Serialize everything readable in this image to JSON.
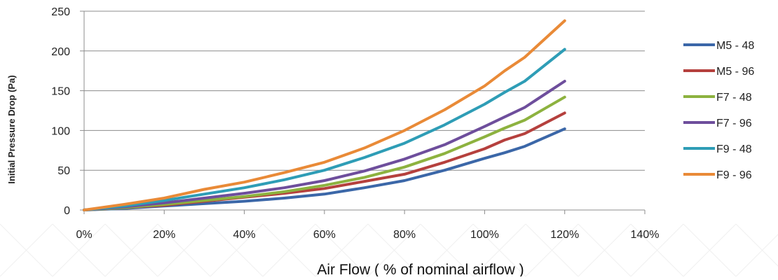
{
  "chart_data": {
    "type": "line",
    "title": "",
    "xlabel": "Air Flow ( % of nominal airflow )",
    "ylabel": "Initial Pressure Drop (Pa)",
    "xlim": [
      0,
      140
    ],
    "ylim": [
      0,
      250
    ],
    "x_ticks": [
      "0%",
      "20%",
      "40%",
      "60%",
      "80%",
      "100%",
      "120%",
      "140%"
    ],
    "x_tick_values": [
      0,
      20,
      40,
      60,
      80,
      100,
      120,
      140
    ],
    "y_ticks": [
      "0",
      "50",
      "100",
      "150",
      "200",
      "250"
    ],
    "y_tick_values": [
      0,
      50,
      100,
      150,
      200,
      250
    ],
    "grid": "horizontal",
    "legend_position": "right",
    "x": [
      0,
      10,
      20,
      30,
      40,
      50,
      60,
      70,
      80,
      90,
      100,
      105,
      110,
      120
    ],
    "series": [
      {
        "name": "M5 - 48",
        "color": "#3B67A8",
        "values": [
          0,
          2,
          5,
          8,
          11,
          15,
          20,
          28,
          37,
          50,
          65,
          72,
          80,
          102
        ]
      },
      {
        "name": "M5 - 96",
        "color": "#B5403D",
        "values": [
          0,
          3,
          6,
          11,
          16,
          21,
          27,
          36,
          45,
          60,
          77,
          88,
          96,
          122
        ]
      },
      {
        "name": "F7 - 48",
        "color": "#8DB23F",
        "values": [
          0,
          3,
          7,
          12,
          17,
          23,
          31,
          41,
          54,
          71,
          92,
          103,
          113,
          142
        ]
      },
      {
        "name": "F7 - 96",
        "color": "#6E4E9C",
        "values": [
          0,
          4,
          9,
          15,
          21,
          28,
          37,
          49,
          64,
          82,
          105,
          117,
          129,
          162
        ]
      },
      {
        "name": "F9 - 48",
        "color": "#2E9DB6",
        "values": [
          0,
          5,
          12,
          20,
          28,
          38,
          50,
          66,
          84,
          107,
          133,
          148,
          162,
          202
        ]
      },
      {
        "name": "F9 - 96",
        "color": "#E98A37",
        "values": [
          0,
          7,
          15,
          26,
          35,
          47,
          60,
          78,
          100,
          126,
          156,
          175,
          192,
          238
        ]
      }
    ]
  }
}
